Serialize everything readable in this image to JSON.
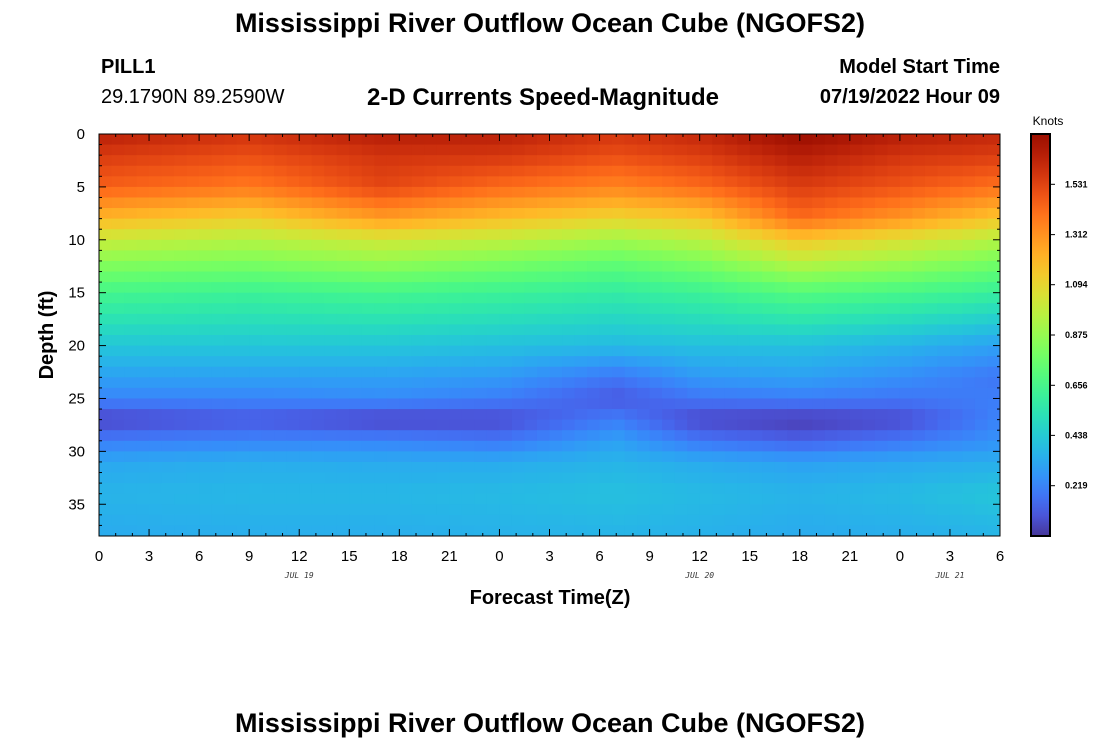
{
  "header": {
    "title": "Mississippi River Outflow Ocean Cube (NGOFS2)",
    "station_name": "PILL1",
    "station_coords": "29.1790N  89.2590W",
    "subtitle": "2-D Currents Speed-Magnitude",
    "start_label": "Model Start Time",
    "start_value": "07/19/2022 Hour 09"
  },
  "footer": {
    "title": "Mississippi River Outflow Ocean Cube (NGOFS2)"
  },
  "chart_data": {
    "type": "heatmap",
    "title": "2-D Currents Speed-Magnitude",
    "xlabel": "Forecast Time(Z)",
    "ylabel": "Depth (ft)",
    "x_tick_labels": [
      "0",
      "3",
      "6",
      "9",
      "12",
      "15",
      "18",
      "21",
      "0",
      "3",
      "6",
      "9",
      "12",
      "15",
      "18",
      "21",
      "0",
      "3",
      "6"
    ],
    "x_hours": [
      0,
      3,
      6,
      9,
      12,
      15,
      18,
      21,
      24,
      27,
      30,
      33,
      36,
      39,
      42,
      45,
      48,
      51,
      54
    ],
    "xlim_hours": [
      0,
      54
    ],
    "date_labels": [
      {
        "label": "JUL 19",
        "hour": 12
      },
      {
        "label": "JUL 20",
        "hour": 36
      },
      {
        "label": "JUL 21",
        "hour": 51
      }
    ],
    "y_ticks": [
      0,
      5,
      10,
      15,
      20,
      25,
      30,
      35
    ],
    "ylim": [
      0,
      38
    ],
    "y_inverted": true,
    "colorbar": {
      "unit": "Knots",
      "ticks": [
        "1.531",
        "1.312",
        "1.094",
        "0.875",
        "0.656",
        "0.438",
        "0.219"
      ],
      "tick_values": [
        1.531,
        1.312,
        1.094,
        0.875,
        0.656,
        0.438,
        0.219
      ],
      "range": [
        0.0,
        1.75
      ],
      "colormap": "turbo"
    },
    "grid": false,
    "key_times_hours": [
      0,
      9,
      17,
      24,
      31,
      36,
      42,
      48,
      54
    ],
    "depths_ft": [
      0,
      2,
      5,
      8,
      10,
      12,
      15,
      20,
      23,
      25,
      27,
      29,
      31,
      34,
      38
    ],
    "values_knots": [
      [
        1.65,
        1.58,
        1.66,
        1.65,
        1.57,
        1.62,
        1.75,
        1.66,
        1.62
      ],
      [
        1.56,
        1.5,
        1.58,
        1.57,
        1.5,
        1.55,
        1.66,
        1.58,
        1.55
      ],
      [
        1.45,
        1.38,
        1.52,
        1.42,
        1.35,
        1.42,
        1.55,
        1.48,
        1.4
      ],
      [
        1.2,
        1.12,
        1.28,
        1.18,
        1.1,
        1.15,
        1.42,
        1.3,
        1.15
      ],
      [
        1.0,
        0.95,
        1.02,
        0.98,
        0.9,
        0.97,
        1.15,
        1.05,
        0.95
      ],
      [
        0.85,
        0.82,
        0.88,
        0.82,
        0.75,
        0.82,
        0.98,
        0.9,
        0.8
      ],
      [
        0.65,
        0.62,
        0.65,
        0.62,
        0.58,
        0.62,
        0.7,
        0.66,
        0.6
      ],
      [
        0.42,
        0.42,
        0.42,
        0.4,
        0.38,
        0.4,
        0.4,
        0.36,
        0.3
      ],
      [
        0.3,
        0.3,
        0.3,
        0.28,
        0.18,
        0.28,
        0.3,
        0.25,
        0.18
      ],
      [
        0.22,
        0.22,
        0.24,
        0.2,
        0.1,
        0.18,
        0.2,
        0.18,
        0.2
      ],
      [
        0.04,
        0.1,
        0.04,
        0.06,
        0.2,
        0.05,
        0.02,
        0.06,
        0.22
      ],
      [
        0.2,
        0.22,
        0.22,
        0.18,
        0.3,
        0.18,
        0.12,
        0.18,
        0.26
      ],
      [
        0.32,
        0.34,
        0.33,
        0.33,
        0.36,
        0.33,
        0.3,
        0.32,
        0.34
      ],
      [
        0.36,
        0.37,
        0.37,
        0.38,
        0.4,
        0.38,
        0.36,
        0.38,
        0.42
      ],
      [
        0.33,
        0.34,
        0.34,
        0.35,
        0.36,
        0.35,
        0.33,
        0.34,
        0.36
      ]
    ]
  }
}
